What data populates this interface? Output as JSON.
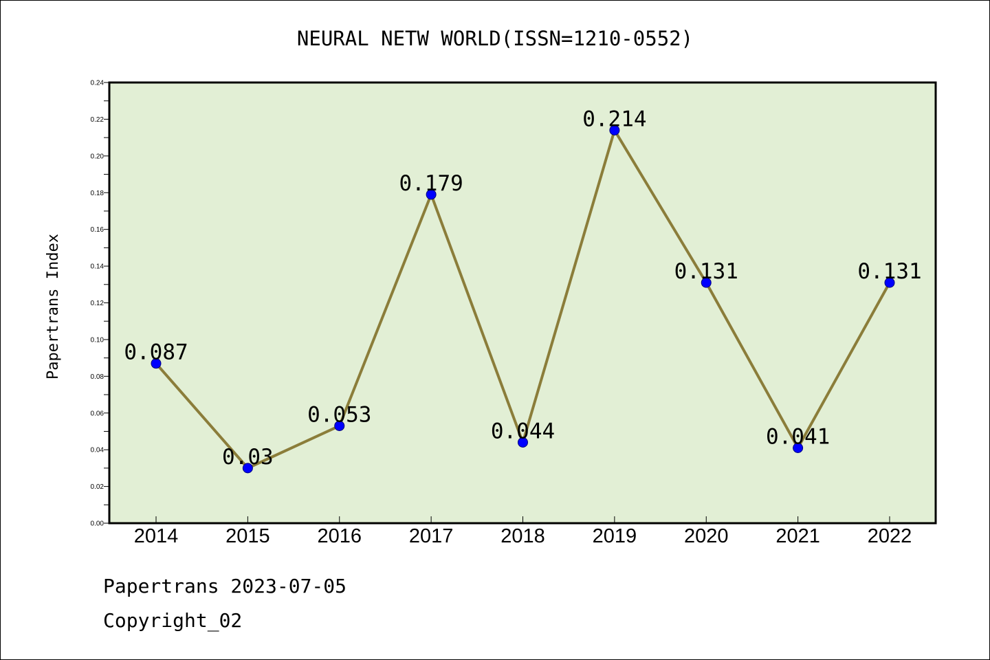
{
  "chart_data": {
    "type": "line",
    "title": "NEURAL NETW WORLD(ISSN=1210-0552)",
    "xlabel": "",
    "ylabel": "Papertrans Index",
    "categories": [
      "2014",
      "2015",
      "2016",
      "2017",
      "2018",
      "2019",
      "2020",
      "2021",
      "2022"
    ],
    "series": [
      {
        "values": [
          0.087,
          0.03,
          0.053,
          0.179,
          0.044,
          0.214,
          0.131,
          0.041,
          0.131
        ],
        "labels": [
          "0.087",
          "0.03",
          "0.053",
          "0.179",
          "0.044",
          "0.214",
          "0.131",
          "0.041",
          "0.131"
        ]
      }
    ],
    "ylim": [
      0,
      0.24
    ],
    "yticks": [
      "0.00",
      "0.02",
      "0.04",
      "0.06",
      "0.08",
      "0.10",
      "0.12",
      "0.14",
      "0.16",
      "0.18",
      "0.20",
      "0.22",
      "0.24"
    ],
    "grid": false,
    "colors": {
      "plot_background": "#e2efd5",
      "line": "#8b7d3a",
      "marker": "#0000ff"
    }
  },
  "footer": {
    "date_text": "Papertrans 2023-07-05",
    "copyright_text": "Copyright_02"
  }
}
